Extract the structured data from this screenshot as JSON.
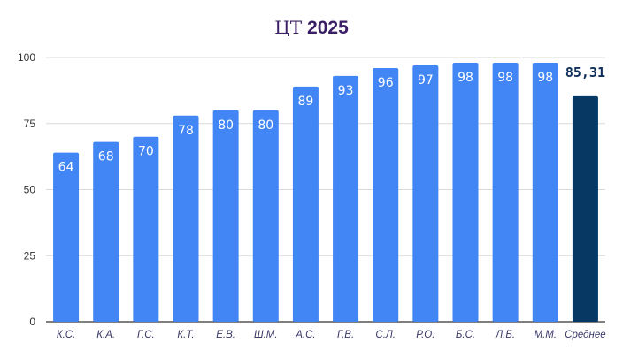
{
  "chart_data": {
    "type": "bar",
    "title_prefix": "ЦТ",
    "title_year": "2025",
    "categories": [
      "К.С.",
      "К.А.",
      "Г.С.",
      "К.Т.",
      "Е.В.",
      "Ш.М.",
      "А.С.",
      "Г.В.",
      "С.Л.",
      "Р.О.",
      "Б.С.",
      "Л.Б.",
      "М.М.",
      "Среднее"
    ],
    "values": [
      64,
      68,
      70,
      78,
      80,
      80,
      89,
      93,
      96,
      97,
      98,
      98,
      98,
      85.31
    ],
    "data_labels": [
      "64",
      "68",
      "70",
      "78",
      "80",
      "80",
      "89",
      "93",
      "96",
      "97",
      "98",
      "98",
      "98",
      "85,31"
    ],
    "ylim": [
      0,
      100
    ],
    "yticks": [
      "0",
      "25",
      "50",
      "75",
      "100"
    ],
    "ytick_values": [
      0,
      25,
      50,
      75,
      100
    ],
    "grid": true,
    "legend": "none",
    "colors": {
      "bar": "#4285f4",
      "average_bar": "#073763",
      "title": "#3b1f66",
      "grid": "#d9d9d9"
    }
  }
}
